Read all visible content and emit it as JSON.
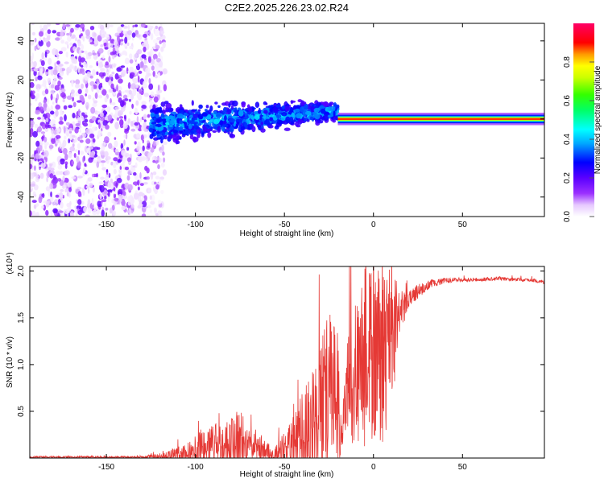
{
  "chart_data": [
    {
      "type": "heatmap",
      "title": "C2E2.2025.226.23.02.R24",
      "xlabel": "Height of straight line (km)",
      "ylabel": "Frequency (Hz)",
      "xlim": [
        -193,
        96
      ],
      "ylim": [
        -50,
        49
      ],
      "xticks": [
        -150,
        -100,
        -50,
        0,
        50
      ],
      "yticks": [
        -40,
        -20,
        0,
        20,
        40
      ],
      "colorbar": {
        "label": "Normalized spectral amplitude",
        "range": [
          0,
          1
        ],
        "ticks": [
          0.0,
          0.2,
          0.4,
          0.6,
          0.8
        ],
        "colormap": "rainbow (white-violet-blue-cyan-green-yellow-red)"
      },
      "regions": [
        {
          "x": [
            -193,
            -125
          ],
          "frequency_spread": [
            -50,
            49
          ],
          "amplitude": [
            0.02,
            0.2
          ],
          "description": "diffuse noise"
        },
        {
          "x": [
            -125,
            -20
          ],
          "frequency_spread": [
            -12,
            15
          ],
          "amplitude": [
            0.1,
            0.45
          ],
          "center_frequency_trend": [
            -3,
            4
          ]
        },
        {
          "x": [
            -20,
            96
          ],
          "frequency_spread": [
            -2,
            2
          ],
          "amplitude": [
            0.6,
            1.0
          ],
          "center_frequency": 0
        }
      ]
    },
    {
      "type": "line",
      "xlabel": "Height of straight line (km)",
      "ylabel": "SNR (10 * v/v)",
      "y_multiplier": "(x10⁴)",
      "xlim": [
        -193,
        96
      ],
      "ylim": [
        0,
        2.05
      ],
      "xticks": [
        -150,
        -100,
        -50,
        0,
        50
      ],
      "yticks": [
        0.5,
        1.0,
        1.5,
        2.0
      ],
      "color": "#e53935",
      "envelope": {
        "x": [
          -193,
          -130,
          -120,
          -105,
          -100,
          -90,
          -80,
          -75,
          -70,
          -60,
          -55,
          -50,
          -45,
          -40,
          -35,
          -30,
          -25,
          -20,
          -18,
          -15,
          -10,
          -5,
          0,
          5,
          10,
          15,
          20,
          25,
          30,
          40,
          50,
          60,
          70,
          80,
          90,
          96
        ],
        "base": [
          0.01,
          0.01,
          0.02,
          0.05,
          0.1,
          0.15,
          0.12,
          0.16,
          0.1,
          0.05,
          0.03,
          0.08,
          0.15,
          0.25,
          0.35,
          0.55,
          0.65,
          0.7,
          0.2,
          0.75,
          0.9,
          1.0,
          1.1,
          1.15,
          1.3,
          1.55,
          1.72,
          1.78,
          1.85,
          1.9,
          1.91,
          1.91,
          1.92,
          1.91,
          1.9,
          1.88
        ],
        "amplitude": [
          0.01,
          0.01,
          0.03,
          0.1,
          0.18,
          0.25,
          0.3,
          0.38,
          0.22,
          0.12,
          0.1,
          0.2,
          0.3,
          0.45,
          0.6,
          0.7,
          0.9,
          0.85,
          0.2,
          0.6,
          0.8,
          0.9,
          0.95,
          1.0,
          0.8,
          0.25,
          0.1,
          0.08,
          0.05,
          0.03,
          0.02,
          0.02,
          0.02,
          0.02,
          0.02,
          0.02
        ]
      }
    }
  ]
}
